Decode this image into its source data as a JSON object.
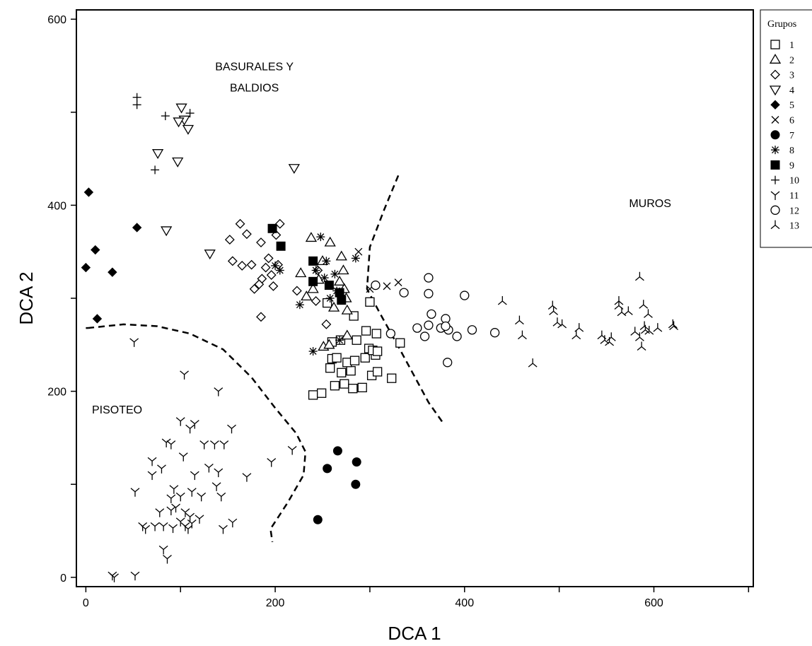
{
  "chart_data": {
    "type": "scatter",
    "xlabel": "DCA 1",
    "ylabel": "DCA 2",
    "xlim": [
      -10,
      705
    ],
    "ylim": [
      -10,
      610
    ],
    "xticks": [
      0,
      200,
      400,
      600
    ],
    "yticks": [
      0,
      200,
      400,
      600
    ],
    "grid": false,
    "legend": {
      "title": "Grupos",
      "placement": "right"
    },
    "annotations": [
      {
        "lines": [
          "BASURALES Y",
          "BALDIOS"
        ],
        "x": 178,
        "y": 545
      },
      {
        "lines": [
          "MUROS"
        ],
        "x": 596,
        "y": 398
      },
      {
        "lines": [
          "PISOTEO"
        ],
        "x": 33,
        "y": 176
      }
    ],
    "boundaries": [
      {
        "points": [
          [
            2,
            268
          ],
          [
            40,
            272
          ],
          [
            75,
            270
          ],
          [
            110,
            262
          ],
          [
            145,
            245
          ],
          [
            175,
            215
          ],
          [
            200,
            182
          ],
          [
            222,
            155
          ],
          [
            232,
            135
          ],
          [
            230,
            110
          ],
          [
            213,
            80
          ],
          [
            195,
            52
          ],
          [
            197,
            38
          ]
        ]
      },
      {
        "points": [
          [
            330,
            432
          ],
          [
            315,
            395
          ],
          [
            300,
            355
          ],
          [
            297,
            310
          ],
          [
            310,
            285
          ],
          [
            328,
            252
          ],
          [
            345,
            220
          ],
          [
            362,
            188
          ],
          [
            378,
            165
          ]
        ]
      },
      {
        "points": [
          [
            0,
            268
          ],
          [
            2,
            268
          ]
        ]
      }
    ],
    "series": [
      {
        "name": "1",
        "marker": "square-open",
        "points": [
          [
            240,
            196
          ],
          [
            249,
            198
          ],
          [
            263,
            206
          ],
          [
            273,
            208
          ],
          [
            282,
            203
          ],
          [
            292,
            204
          ],
          [
            302,
            217
          ],
          [
            308,
            221
          ],
          [
            323,
            214
          ],
          [
            258,
            225
          ],
          [
            270,
            220
          ],
          [
            280,
            222
          ],
          [
            260,
            235
          ],
          [
            265,
            236
          ],
          [
            276,
            231
          ],
          [
            284,
            233
          ],
          [
            295,
            236
          ],
          [
            306,
            239
          ],
          [
            260,
            253
          ],
          [
            269,
            255
          ],
          [
            286,
            255
          ],
          [
            299,
            246
          ],
          [
            303,
            244
          ],
          [
            308,
            243
          ],
          [
            296,
            265
          ],
          [
            307,
            262
          ],
          [
            332,
            252
          ],
          [
            283,
            281
          ],
          [
            300,
            296
          ],
          [
            255,
            295
          ]
        ]
      },
      {
        "name": "2",
        "marker": "triangle-up-open",
        "points": [
          [
            251,
            248
          ],
          [
            257,
            250
          ],
          [
            276,
            260
          ],
          [
            262,
            290
          ],
          [
            276,
            287
          ],
          [
            273,
            310
          ],
          [
            240,
            310
          ],
          [
            238,
            365
          ],
          [
            250,
            340
          ],
          [
            258,
            360
          ],
          [
            270,
            345
          ],
          [
            227,
            327
          ],
          [
            246,
            320
          ],
          [
            272,
            330
          ],
          [
            233,
            302
          ],
          [
            268,
            318
          ],
          [
            275,
            300
          ]
        ]
      },
      {
        "name": "3",
        "marker": "diamond-open",
        "points": [
          [
            152,
            363
          ],
          [
            163,
            380
          ],
          [
            170,
            369
          ],
          [
            155,
            340
          ],
          [
            165,
            335
          ],
          [
            175,
            336
          ],
          [
            185,
            360
          ],
          [
            193,
            343
          ],
          [
            201,
            368
          ],
          [
            205,
            380
          ],
          [
            196,
            325
          ],
          [
            186,
            321
          ],
          [
            183,
            315
          ],
          [
            178,
            310
          ],
          [
            190,
            333
          ],
          [
            198,
            313
          ],
          [
            203,
            336
          ],
          [
            185,
            280
          ],
          [
            243,
            297
          ],
          [
            254,
            272
          ],
          [
            223,
            308
          ],
          [
            245,
            330
          ]
        ]
      },
      {
        "name": "4",
        "marker": "triangle-down-open",
        "points": [
          [
            101,
            505
          ],
          [
            104,
            492
          ],
          [
            98,
            490
          ],
          [
            108,
            482
          ],
          [
            76,
            456
          ],
          [
            97,
            447
          ],
          [
            220,
            440
          ],
          [
            85,
            373
          ],
          [
            131,
            348
          ]
        ]
      },
      {
        "name": "5",
        "marker": "diamond-filled",
        "points": [
          [
            3,
            414
          ],
          [
            54,
            376
          ],
          [
            10,
            352
          ],
          [
            0,
            333
          ],
          [
            28,
            328
          ],
          [
            12,
            278
          ]
        ]
      },
      {
        "name": "6",
        "marker": "x",
        "points": [
          [
            288,
            350
          ],
          [
            300,
            310
          ],
          [
            318,
            313
          ],
          [
            330,
            317
          ]
        ]
      },
      {
        "name": "7",
        "marker": "circle-filled",
        "points": [
          [
            255,
            117
          ],
          [
            266,
            136
          ],
          [
            286,
            124
          ],
          [
            285,
            100
          ],
          [
            245,
            62
          ]
        ]
      },
      {
        "name": "8",
        "marker": "asterisk",
        "points": [
          [
            248,
            366
          ],
          [
            254,
            340
          ],
          [
            263,
            326
          ],
          [
            252,
            322
          ],
          [
            243,
            330
          ],
          [
            265,
            308
          ],
          [
            270,
            300
          ],
          [
            258,
            300
          ],
          [
            226,
            293
          ],
          [
            200,
            335
          ],
          [
            205,
            330
          ],
          [
            285,
            343
          ],
          [
            240,
            243
          ],
          [
            268,
            255
          ]
        ]
      },
      {
        "name": "9",
        "marker": "square-filled",
        "points": [
          [
            197,
            375
          ],
          [
            206,
            356
          ],
          [
            240,
            340
          ],
          [
            240,
            318
          ],
          [
            257,
            314
          ],
          [
            268,
            306
          ],
          [
            270,
            298
          ]
        ]
      },
      {
        "name": "10",
        "marker": "plus",
        "points": [
          [
            54,
            516
          ],
          [
            54,
            508
          ],
          [
            84,
            496
          ],
          [
            110,
            499
          ],
          [
            73,
            438
          ]
        ]
      },
      {
        "name": "11",
        "marker": "y",
        "points": [
          [
            28,
            2
          ],
          [
            30,
            0
          ],
          [
            52,
            2
          ],
          [
            82,
            30
          ],
          [
            86,
            20
          ],
          [
            51,
            253
          ],
          [
            104,
            218
          ],
          [
            140,
            200
          ],
          [
            154,
            160
          ],
          [
            110,
            160
          ],
          [
            125,
            143
          ],
          [
            136,
            143
          ],
          [
            146,
            143
          ],
          [
            100,
            168
          ],
          [
            115,
            165
          ],
          [
            85,
            145
          ],
          [
            90,
            143
          ],
          [
            70,
            125
          ],
          [
            103,
            130
          ],
          [
            130,
            118
          ],
          [
            140,
            113
          ],
          [
            115,
            110
          ],
          [
            70,
            110
          ],
          [
            80,
            117
          ],
          [
            93,
            95
          ],
          [
            100,
            87
          ],
          [
            90,
            85
          ],
          [
            112,
            92
          ],
          [
            122,
            87
          ],
          [
            138,
            98
          ],
          [
            143,
            87
          ],
          [
            170,
            108
          ],
          [
            196,
            124
          ],
          [
            218,
            137
          ],
          [
            52,
            92
          ],
          [
            78,
            70
          ],
          [
            90,
            72
          ],
          [
            105,
            70
          ],
          [
            110,
            65
          ],
          [
            100,
            60
          ],
          [
            95,
            75
          ],
          [
            112,
            58
          ],
          [
            120,
            63
          ],
          [
            73,
            55
          ],
          [
            82,
            55
          ],
          [
            92,
            53
          ],
          [
            105,
            55
          ],
          [
            108,
            52
          ],
          [
            60,
            55
          ],
          [
            63,
            52
          ],
          [
            145,
            52
          ],
          [
            155,
            59
          ]
        ]
      },
      {
        "name": "12",
        "marker": "circle-open",
        "points": [
          [
            306,
            314
          ],
          [
            336,
            306
          ],
          [
            362,
            322
          ],
          [
            362,
            305
          ],
          [
            365,
            283
          ],
          [
            380,
            278
          ],
          [
            362,
            271
          ],
          [
            375,
            268
          ],
          [
            383,
            266
          ],
          [
            392,
            259
          ],
          [
            358,
            259
          ],
          [
            380,
            270
          ],
          [
            400,
            303
          ],
          [
            408,
            266
          ],
          [
            432,
            263
          ],
          [
            382,
            231
          ],
          [
            322,
            262
          ],
          [
            350,
            268
          ]
        ]
      },
      {
        "name": "13",
        "marker": "tri-down",
        "points": [
          [
            440,
            297
          ],
          [
            458,
            276
          ],
          [
            461,
            260
          ],
          [
            472,
            230
          ],
          [
            493,
            292
          ],
          [
            494,
            286
          ],
          [
            498,
            274
          ],
          [
            503,
            272
          ],
          [
            521,
            268
          ],
          [
            518,
            260
          ],
          [
            545,
            260
          ],
          [
            548,
            255
          ],
          [
            553,
            253
          ],
          [
            555,
            258
          ],
          [
            563,
            297
          ],
          [
            563,
            292
          ],
          [
            566,
            285
          ],
          [
            573,
            286
          ],
          [
            580,
            264
          ],
          [
            585,
            258
          ],
          [
            587,
            248
          ],
          [
            590,
            270
          ],
          [
            591,
            266
          ],
          [
            595,
            265
          ],
          [
            589,
            293
          ],
          [
            594,
            283
          ],
          [
            585,
            323
          ],
          [
            604,
            268
          ],
          [
            620,
            272
          ],
          [
            621,
            270
          ]
        ]
      }
    ]
  }
}
